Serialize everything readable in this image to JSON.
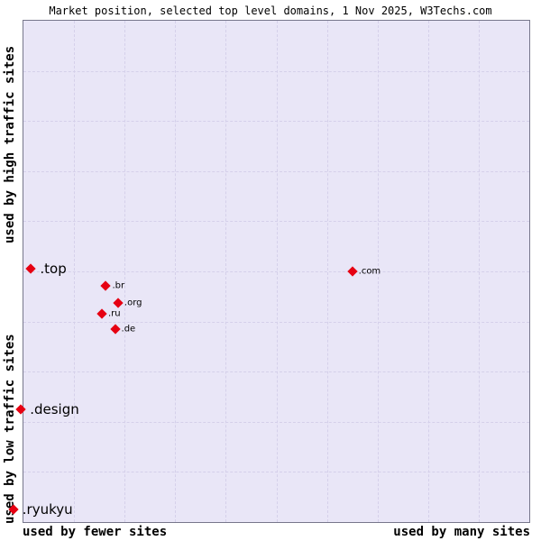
{
  "title": "Market position, selected top level domains, 1 Nov 2025, W3Techs.com",
  "axes": {
    "y_top": "used by high traffic sites",
    "y_bottom": "used by low traffic sites",
    "x_left": "used by fewer sites",
    "x_right": "used by many sites"
  },
  "colors": {
    "plot_bg": "#e9e6f7",
    "grid": "#d5d0ea",
    "marker": "#e60012"
  },
  "chart_data": {
    "type": "scatter",
    "title": "Market position, selected top level domains, 1 Nov 2025, W3Techs.com",
    "x_axis": {
      "label_left": "used by fewer sites",
      "label_right": "used by many sites",
      "range": [
        0,
        1
      ],
      "qualitative": true
    },
    "y_axis": {
      "label_bottom": "used by low traffic sites",
      "label_top": "used by high traffic sites",
      "range": [
        0,
        1
      ],
      "qualitative": true
    },
    "grid": {
      "visible": true,
      "style": "dashed",
      "divisions": 10
    },
    "points": [
      {
        "label": ".top",
        "x": 0.015,
        "y": 0.505,
        "emphasis": "large"
      },
      {
        "label": ".com",
        "x": 0.65,
        "y": 0.5,
        "emphasis": "small"
      },
      {
        "label": ".br",
        "x": 0.163,
        "y": 0.471,
        "emphasis": "small"
      },
      {
        "label": ".org",
        "x": 0.187,
        "y": 0.437,
        "emphasis": "small"
      },
      {
        "label": ".ru",
        "x": 0.155,
        "y": 0.416,
        "emphasis": "small"
      },
      {
        "label": ".de",
        "x": 0.181,
        "y": 0.384,
        "emphasis": "small"
      },
      {
        "label": ".design",
        "x": -0.005,
        "y": 0.224,
        "emphasis": "large"
      },
      {
        "label": ".ryukyu",
        "x": -0.02,
        "y": 0.025,
        "emphasis": "large"
      }
    ]
  }
}
